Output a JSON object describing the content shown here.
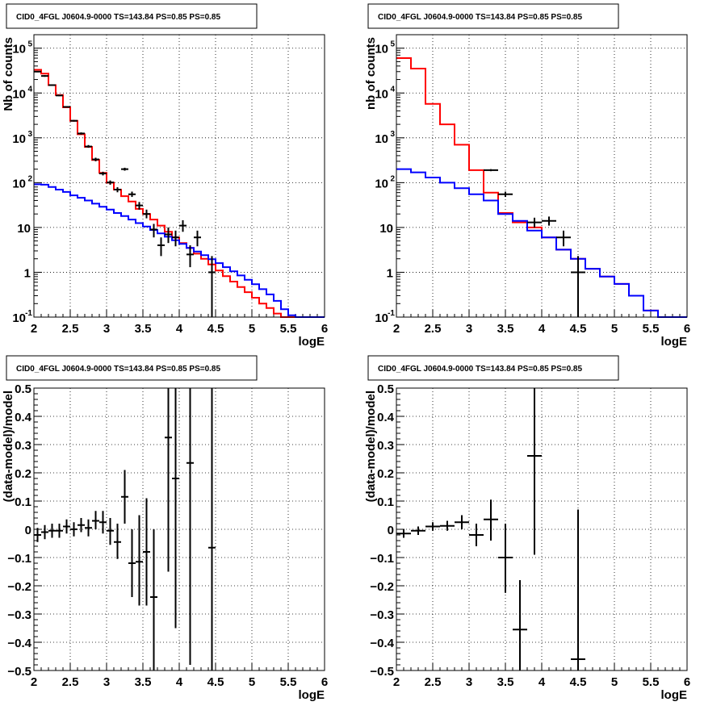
{
  "chart_data": [
    {
      "type": "line",
      "title": "CID0_4FGL J0604.9-0000 TS=143.84 PS=0.85 PS=0.85",
      "xlabel": "logE",
      "ylabel": "Nb of counts",
      "xlim": [
        2,
        6
      ],
      "ylim": [
        0.1,
        200000
      ],
      "yscale": "log",
      "grid": true,
      "x_ticks": [
        "2",
        "2.5",
        "3",
        "3.5",
        "4",
        "4.5",
        "5",
        "5.5",
        "6"
      ],
      "y_ticks": [
        {
          "v": 0.1,
          "base": "10",
          "exp": "-1"
        },
        {
          "v": 1,
          "base": "1",
          "exp": ""
        },
        {
          "v": 10,
          "base": "10",
          "exp": ""
        },
        {
          "v": 100,
          "base": "10",
          "exp": "2"
        },
        {
          "v": 1000,
          "base": "10",
          "exp": "3"
        },
        {
          "v": 10000,
          "base": "10",
          "exp": "4"
        },
        {
          "v": 100000,
          "base": "10",
          "exp": "5"
        }
      ],
      "bin_edges": [
        2.0,
        2.1,
        2.2,
        2.3,
        2.4,
        2.5,
        2.6,
        2.7,
        2.8,
        2.9,
        3.0,
        3.1,
        3.2,
        3.3,
        3.4,
        3.5,
        3.6,
        3.7,
        3.8,
        3.9,
        4.0,
        4.1,
        4.2,
        4.3,
        4.4,
        4.5,
        4.6,
        4.7,
        4.8,
        4.9,
        5.0,
        5.1,
        5.2,
        5.3,
        5.4,
        5.5,
        5.6,
        5.7,
        5.8,
        5.9,
        6.0
      ],
      "series": [
        {
          "color": "#ff0000",
          "kind": "step",
          "values": [
            33000,
            27000,
            15000,
            9000,
            4800,
            2400,
            1200,
            630,
            320,
            165,
            100,
            70,
            50,
            38,
            26,
            20,
            15,
            11,
            8,
            6,
            4.5,
            3.5,
            2.6,
            2.0,
            1.5,
            1.1,
            0.82,
            0.62,
            0.47,
            0.36,
            0.27,
            0.2,
            0.16,
            0.12,
            0.1,
            0.1,
            0.1,
            0.1,
            0.1,
            0.1
          ]
        },
        {
          "color": "#0000ff",
          "kind": "step",
          "values": [
            92,
            90,
            80,
            70,
            62,
            52,
            46,
            40,
            34,
            29,
            25,
            21,
            18,
            15,
            12.5,
            10.5,
            8.8,
            7.4,
            6.2,
            5.2,
            4.3,
            3.5,
            2.9,
            2.4,
            1.95,
            1.6,
            1.3,
            1.05,
            0.85,
            0.68,
            0.54,
            0.42,
            0.32,
            0.23,
            0.15,
            0.11,
            0.1,
            0.1,
            0.1,
            0.1
          ]
        },
        {
          "color": "#000000",
          "kind": "errorbar",
          "points": [
            {
              "x": 2.05,
              "y": 30000,
              "lo": 29000,
              "hi": 31000
            },
            {
              "x": 2.15,
              "y": 24000,
              "lo": 23000,
              "hi": 25000
            },
            {
              "x": 2.25,
              "y": 15000,
              "lo": 14500,
              "hi": 15500
            },
            {
              "x": 2.35,
              "y": 8800,
              "lo": 8500,
              "hi": 9100
            },
            {
              "x": 2.45,
              "y": 4900,
              "lo": 4700,
              "hi": 5100
            },
            {
              "x": 2.55,
              "y": 2400,
              "lo": 2300,
              "hi": 2500
            },
            {
              "x": 2.65,
              "y": 1250,
              "lo": 1180,
              "hi": 1320
            },
            {
              "x": 2.75,
              "y": 640,
              "lo": 600,
              "hi": 690
            },
            {
              "x": 2.85,
              "y": 330,
              "lo": 300,
              "hi": 360
            },
            {
              "x": 2.95,
              "y": 160,
              "lo": 145,
              "hi": 175
            },
            {
              "x": 3.05,
              "y": 101,
              "lo": 90,
              "hi": 112
            },
            {
              "x": 3.15,
              "y": 70,
              "lo": 61,
              "hi": 79
            },
            {
              "x": 3.25,
              "y": 200,
              "lo": 185,
              "hi": 215
            },
            {
              "x": 3.35,
              "y": 55,
              "lo": 48,
              "hi": 63
            },
            {
              "x": 3.45,
              "y": 31,
              "lo": 25,
              "hi": 37
            },
            {
              "x": 3.55,
              "y": 20,
              "lo": 16,
              "hi": 25
            },
            {
              "x": 3.65,
              "y": 9,
              "lo": 6,
              "hi": 12
            },
            {
              "x": 3.75,
              "y": 4,
              "lo": 2.3,
              "hi": 6
            },
            {
              "x": 3.85,
              "y": 7,
              "lo": 4.5,
              "hi": 10
            },
            {
              "x": 3.95,
              "y": 6,
              "lo": 3.8,
              "hi": 8.5
            },
            {
              "x": 4.05,
              "y": 11,
              "lo": 8,
              "hi": 14.5
            },
            {
              "x": 4.15,
              "y": 2.5,
              "lo": 1.3,
              "hi": 4
            },
            {
              "x": 4.25,
              "y": 6,
              "lo": 3.8,
              "hi": 8.5
            },
            {
              "x": 4.45,
              "y": 1,
              "lo": 0.1,
              "hi": 2.3
            }
          ]
        }
      ]
    },
    {
      "type": "line",
      "title": "CID0_4FGL J0604.9-0000 TS=143.84 PS=0.85 PS=0.85",
      "xlabel": "logE",
      "ylabel": "nb of counts",
      "xlim": [
        2,
        6
      ],
      "ylim": [
        0.1,
        200000
      ],
      "yscale": "log",
      "grid": true,
      "x_ticks": [
        "2",
        "2.5",
        "3",
        "3.5",
        "4",
        "4.5",
        "5",
        "5.5",
        "6"
      ],
      "y_ticks": [
        {
          "v": 0.1,
          "base": "10",
          "exp": "-1"
        },
        {
          "v": 1,
          "base": "1",
          "exp": ""
        },
        {
          "v": 10,
          "base": "10",
          "exp": ""
        },
        {
          "v": 100,
          "base": "10",
          "exp": "2"
        },
        {
          "v": 1000,
          "base": "10",
          "exp": "3"
        },
        {
          "v": 10000,
          "base": "10",
          "exp": "4"
        },
        {
          "v": 100000,
          "base": "10",
          "exp": "5"
        }
      ],
      "bin_edges": [
        2.0,
        2.2,
        2.4,
        2.6,
        2.8,
        3.0,
        3.2,
        3.4,
        3.6,
        3.8,
        4.0,
        4.2,
        4.4,
        4.6,
        4.8,
        5.0,
        5.2,
        5.4,
        5.6,
        5.8,
        6.0
      ],
      "series": [
        {
          "color": "#ff0000",
          "kind": "step",
          "values": [
            60000,
            35000,
            5700,
            2000,
            700,
            190,
            60,
            21,
            13,
            10,
            6,
            3.2,
            2,
            1.2,
            0.8,
            0.55,
            0.3,
            0.14,
            0.1,
            0.1
          ]
        },
        {
          "color": "#0000ff",
          "kind": "step",
          "values": [
            200,
            170,
            130,
            100,
            75,
            55,
            40,
            20,
            14,
            8.5,
            6,
            3.2,
            2,
            1.2,
            0.8,
            0.55,
            0.3,
            0.14,
            0.1,
            0.1
          ]
        },
        {
          "color": "#000000",
          "kind": "errorbar",
          "points": [
            {
              "x": 3.3,
              "y": 190,
              "lo": 180,
              "hi": 200
            },
            {
              "x": 3.5,
              "y": 55,
              "lo": 48,
              "hi": 63
            },
            {
              "x": 3.9,
              "y": 13,
              "lo": 10,
              "hi": 16.5
            },
            {
              "x": 4.1,
              "y": 14,
              "lo": 11,
              "hi": 17.5
            },
            {
              "x": 4.3,
              "y": 6,
              "lo": 3.8,
              "hi": 8.5
            },
            {
              "x": 4.5,
              "y": 1,
              "lo": 0.1,
              "hi": 2.3
            }
          ]
        }
      ]
    },
    {
      "type": "scatter",
      "title": "CID0_4FGL J0604.9-0000 TS=143.84 PS=0.85 PS=0.85",
      "xlabel": "logE",
      "ylabel": "(data-model)/model",
      "xlim": [
        2,
        6
      ],
      "ylim": [
        -0.5,
        0.5
      ],
      "yscale": "linear",
      "grid": true,
      "x_ticks": [
        "2",
        "2.5",
        "3",
        "3.5",
        "4",
        "4.5",
        "5",
        "5.5",
        "6"
      ],
      "y_ticks": [
        {
          "v": -0.5,
          "label": "−0.5"
        },
        {
          "v": -0.4,
          "label": "−0.4"
        },
        {
          "v": -0.3,
          "label": "−0.3"
        },
        {
          "v": -0.2,
          "label": "−0.2"
        },
        {
          "v": -0.1,
          "label": "−0.1"
        },
        {
          "v": 0,
          "label": "0"
        },
        {
          "v": 0.1,
          "label": "0.1"
        },
        {
          "v": 0.2,
          "label": "0.2"
        },
        {
          "v": 0.3,
          "label": "0.3"
        },
        {
          "v": 0.4,
          "label": "0.4"
        },
        {
          "v": 0.5,
          "label": "0.5"
        }
      ],
      "bin_width": 0.1,
      "series": [
        {
          "color": "#000000",
          "kind": "errorbar",
          "points": [
            {
              "x": 2.05,
              "y": -0.02,
              "lo": -0.045,
              "hi": 0.005
            },
            {
              "x": 2.15,
              "y": -0.01,
              "lo": -0.035,
              "hi": 0.015
            },
            {
              "x": 2.25,
              "y": -0.005,
              "lo": -0.03,
              "hi": 0.02
            },
            {
              "x": 2.35,
              "y": -0.005,
              "lo": -0.03,
              "hi": 0.02
            },
            {
              "x": 2.45,
              "y": 0.01,
              "lo": -0.015,
              "hi": 0.035
            },
            {
              "x": 2.55,
              "y": 0.0,
              "lo": -0.025,
              "hi": 0.025
            },
            {
              "x": 2.65,
              "y": 0.015,
              "lo": -0.01,
              "hi": 0.04
            },
            {
              "x": 2.75,
              "y": 0.005,
              "lo": -0.025,
              "hi": 0.035
            },
            {
              "x": 2.85,
              "y": 0.03,
              "lo": 0.0,
              "hi": 0.065
            },
            {
              "x": 2.95,
              "y": 0.025,
              "lo": -0.015,
              "hi": 0.065
            },
            {
              "x": 3.05,
              "y": -0.005,
              "lo": -0.055,
              "hi": 0.04
            },
            {
              "x": 3.15,
              "y": -0.045,
              "lo": -0.105,
              "hi": 0.02
            },
            {
              "x": 3.25,
              "y": 0.115,
              "lo": 0.02,
              "hi": 0.21
            },
            {
              "x": 3.35,
              "y": -0.12,
              "lo": -0.24,
              "hi": 0.0
            },
            {
              "x": 3.45,
              "y": -0.115,
              "lo": -0.27,
              "hi": 0.05
            },
            {
              "x": 3.55,
              "y": -0.08,
              "lo": -0.27,
              "hi": 0.11
            },
            {
              "x": 3.65,
              "y": -0.24,
              "lo": -0.5,
              "hi": 0.0
            },
            {
              "x": 3.85,
              "y": 0.325,
              "lo": -0.15,
              "hi": 0.5
            },
            {
              "x": 3.95,
              "y": 0.18,
              "lo": -0.35,
              "hi": 0.5
            },
            {
              "x": 4.15,
              "y": 0.235,
              "lo": -0.48,
              "hi": 0.5
            },
            {
              "x": 4.45,
              "y": -0.065,
              "lo": -0.5,
              "hi": 0.5
            }
          ]
        }
      ]
    },
    {
      "type": "scatter",
      "title": "CID0_4FGL J0604.9-0000 TS=143.84 PS=0.85 PS=0.85",
      "xlabel": "logE",
      "ylabel": "(data-model)/model",
      "xlim": [
        2,
        6
      ],
      "ylim": [
        -0.5,
        0.5
      ],
      "yscale": "linear",
      "grid": true,
      "x_ticks": [
        "2",
        "2.5",
        "3",
        "3.5",
        "4",
        "4.5",
        "5",
        "5.5",
        "6"
      ],
      "y_ticks": [
        {
          "v": -0.5,
          "label": "−0.5"
        },
        {
          "v": -0.4,
          "label": "−0.4"
        },
        {
          "v": -0.3,
          "label": "−0.3"
        },
        {
          "v": -0.2,
          "label": "−0.2"
        },
        {
          "v": -0.1,
          "label": "−0.1"
        },
        {
          "v": 0,
          "label": "0"
        },
        {
          "v": 0.1,
          "label": "0.1"
        },
        {
          "v": 0.2,
          "label": "0.2"
        },
        {
          "v": 0.3,
          "label": "0.3"
        },
        {
          "v": 0.4,
          "label": "0.4"
        },
        {
          "v": 0.5,
          "label": "0.5"
        }
      ],
      "bin_width": 0.2,
      "series": [
        {
          "color": "#000000",
          "kind": "errorbar",
          "points": [
            {
              "x": 2.1,
              "y": -0.015,
              "lo": -0.03,
              "hi": 0.0
            },
            {
              "x": 2.3,
              "y": -0.005,
              "lo": -0.02,
              "hi": 0.01
            },
            {
              "x": 2.5,
              "y": 0.01,
              "lo": -0.005,
              "hi": 0.025
            },
            {
              "x": 2.7,
              "y": 0.012,
              "lo": -0.005,
              "hi": 0.03
            },
            {
              "x": 2.9,
              "y": 0.025,
              "lo": 0.0,
              "hi": 0.05
            },
            {
              "x": 3.1,
              "y": -0.02,
              "lo": -0.06,
              "hi": 0.02
            },
            {
              "x": 3.3,
              "y": 0.035,
              "lo": -0.04,
              "hi": 0.105
            },
            {
              "x": 3.5,
              "y": -0.1,
              "lo": -0.225,
              "hi": 0.02
            },
            {
              "x": 3.7,
              "y": -0.355,
              "lo": -0.5,
              "hi": -0.18
            },
            {
              "x": 3.9,
              "y": 0.26,
              "lo": -0.09,
              "hi": 0.5
            },
            {
              "x": 4.5,
              "y": -0.46,
              "lo": -0.5,
              "hi": 0.07
            }
          ]
        }
      ]
    }
  ]
}
